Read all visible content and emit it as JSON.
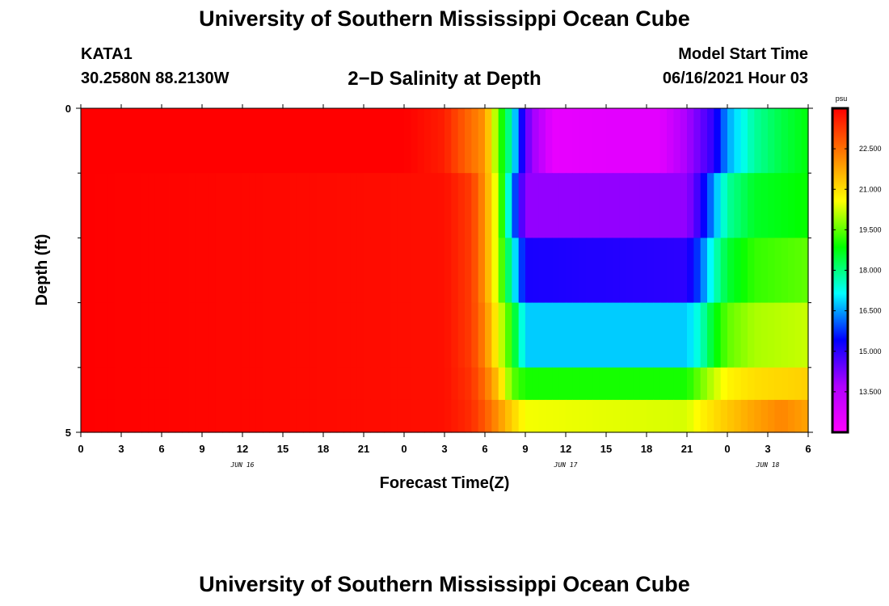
{
  "header": {
    "title": "University of Southern Mississippi Ocean Cube",
    "station": "KATA1",
    "coords": "30.2580N  88.2130W",
    "subtitle": "2−D Salinity at Depth",
    "model_start_label": "Model Start Time",
    "model_start_value": "06/16/2021 Hour 03"
  },
  "footer": {
    "title": "University of Southern Mississippi Ocean Cube"
  },
  "colorbar": {
    "unit": "psu",
    "range": [
      12.0,
      24.0
    ],
    "tick_values": [
      22.5,
      21.0,
      19.5,
      18.0,
      16.5,
      15.0,
      13.5
    ],
    "tick_labels": [
      "22.500",
      "21.000",
      "19.500",
      "18.000",
      "16.500",
      "15.000",
      "13.500"
    ],
    "colors": [
      "#ff00ff",
      "#b000ff",
      "#0000ff",
      "#00ffff",
      "#00ff00",
      "#ffff00",
      "#ff7f00",
      "#ff0000"
    ]
  },
  "chart_data": {
    "type": "heatmap",
    "title": "2−D Salinity at Depth",
    "xlabel": "Forecast Time(Z)",
    "ylabel": "Depth (ft)",
    "x_range": [
      0,
      54
    ],
    "x_unit": "hours from 06/16 00Z",
    "x_tick_values": [
      0,
      3,
      6,
      9,
      12,
      15,
      18,
      21,
      24,
      27,
      30,
      33,
      36,
      39,
      42,
      45,
      48,
      51,
      54
    ],
    "x_tick_labels": [
      "0",
      "3",
      "6",
      "9",
      "12",
      "15",
      "18",
      "21",
      "0",
      "3",
      "6",
      "9",
      "12",
      "15",
      "18",
      "21",
      "0",
      "3",
      "6"
    ],
    "date_labels": [
      {
        "x": 12,
        "label": "JUN 16"
      },
      {
        "x": 36,
        "label": "JUN 17"
      },
      {
        "x": 51,
        "label": "JUN 18"
      }
    ],
    "y_range": [
      0,
      5
    ],
    "y_tick_values": [
      0,
      5
    ],
    "y_tick_labels": [
      "0",
      "5"
    ],
    "y_minor_ticks": [
      1,
      2,
      3,
      4
    ],
    "depth_levels": [
      0,
      1,
      2,
      3,
      4,
      5
    ],
    "grid": false,
    "series": [
      {
        "depth_band": [
          0.0,
          1.0
        ],
        "times": [
          0,
          24,
          27,
          28,
          30,
          31,
          32,
          33,
          35,
          39,
          43,
          45,
          47,
          48,
          50,
          52,
          54
        ],
        "values": [
          24.0,
          24.0,
          23.6,
          23.0,
          22.0,
          19.5,
          17.5,
          14.5,
          12.5,
          12.6,
          12.6,
          13.8,
          15.0,
          16.5,
          17.8,
          18.4,
          18.8
        ]
      },
      {
        "depth_band": [
          1.0,
          2.0
        ],
        "times": [
          0,
          27,
          29,
          30,
          31,
          32,
          33,
          45,
          46,
          47,
          48,
          50,
          54
        ],
        "values": [
          24.0,
          23.8,
          23.2,
          22.0,
          20.0,
          16.5,
          14.0,
          14.0,
          15.0,
          16.5,
          17.8,
          18.6,
          18.9
        ]
      },
      {
        "depth_band": [
          2.0,
          3.0
        ],
        "times": [
          0,
          27,
          29,
          30,
          31,
          32,
          33,
          45,
          46,
          47,
          48,
          50,
          54
        ],
        "values": [
          24.0,
          23.8,
          23.2,
          22.0,
          20.0,
          17.5,
          15.2,
          15.0,
          16.0,
          17.5,
          18.5,
          19.2,
          19.5
        ]
      },
      {
        "depth_band": [
          3.0,
          4.0
        ],
        "times": [
          0,
          27,
          29,
          30,
          31,
          32,
          33,
          45,
          46,
          47,
          48,
          50,
          54
        ],
        "values": [
          24.0,
          23.8,
          23.2,
          22.2,
          20.5,
          19.0,
          16.8,
          16.8,
          17.5,
          18.7,
          19.5,
          20.0,
          20.2
        ]
      },
      {
        "depth_band": [
          4.0,
          4.5
        ],
        "times": [
          0,
          27,
          29,
          30,
          31,
          32,
          33,
          45,
          46,
          47,
          48,
          50,
          54
        ],
        "values": [
          24.0,
          23.8,
          23.3,
          22.5,
          21.3,
          19.5,
          19.0,
          19.0,
          19.6,
          20.2,
          20.7,
          21.0,
          21.2
        ]
      },
      {
        "depth_band": [
          4.5,
          5.0
        ],
        "times": [
          0,
          27,
          29,
          30,
          31,
          32,
          33,
          45,
          46,
          48,
          50,
          52,
          54
        ],
        "values": [
          24.0,
          23.8,
          23.4,
          22.8,
          22.0,
          21.2,
          20.5,
          20.3,
          20.7,
          21.3,
          21.8,
          22.2,
          21.8
        ]
      }
    ]
  }
}
